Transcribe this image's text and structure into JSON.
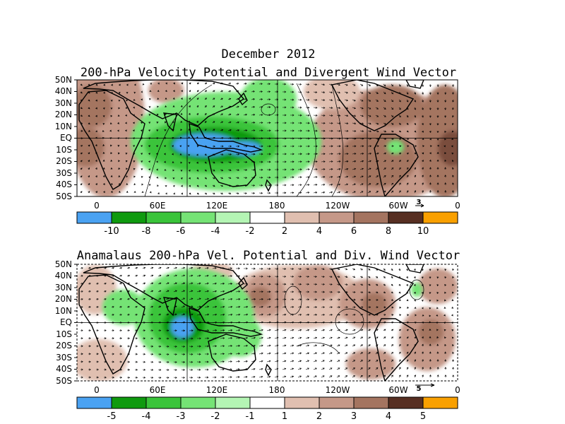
{
  "colors": {
    "neg5": "#4aa2f2",
    "neg4": "#0f9a0f",
    "neg3": "#3ac43a",
    "neg2": "#75e375",
    "neg1": "#b4f5b4",
    "zero": "#ffffff",
    "pos1": "#e0bfb0",
    "pos2": "#c59888",
    "pos3": "#a47460",
    "pos4": "#7a4e3e",
    "pos5": "#572f22",
    "pos6": "#f9a000",
    "land": "#000000",
    "vector": "#000000"
  },
  "panels": [
    {
      "title_line1": "December 2012",
      "title_line2": "200-hPa Velocity Potential and Divergent Wind Vector",
      "lat_labels": [
        "50N",
        "40N",
        "30N",
        "20N",
        "10N",
        "EQ",
        "10S",
        "20S",
        "30S",
        "40S",
        "50S"
      ],
      "lon_labels": [
        "0",
        "60E",
        "120E",
        "180",
        "120W",
        "60W",
        "0"
      ],
      "ref_vector_label": "3",
      "colorbar_labels": [
        "-10",
        "-8",
        "-6",
        "-4",
        "-2",
        "2",
        "4",
        "6",
        "8",
        "10"
      ]
    },
    {
      "title": "Anamalaus 200-hPa Vel. Potential and Div. Wind Vector",
      "lat_labels": [
        "50N",
        "40N",
        "30N",
        "20N",
        "10N",
        "EQ",
        "10S",
        "20S",
        "30S",
        "40S",
        "50S"
      ],
      "lon_labels": [
        "0",
        "60E",
        "120E",
        "180",
        "120W",
        "60W",
        "0"
      ],
      "ref_vector_label": "5",
      "colorbar_labels": [
        "-5",
        "-4",
        "-3",
        "-2",
        "-1",
        "1",
        "2",
        "3",
        "4",
        "5"
      ]
    }
  ]
}
